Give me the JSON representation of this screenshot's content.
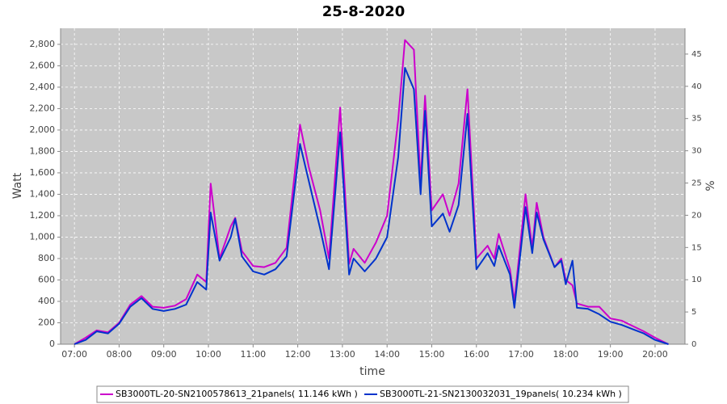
{
  "chart_data": {
    "type": "line",
    "title": "25-8-2020",
    "x_label": "time",
    "y_label": "Watt",
    "y2_label": "%",
    "x": [
      7.0,
      7.25,
      7.5,
      7.75,
      8.0,
      8.25,
      8.5,
      8.75,
      9.0,
      9.25,
      9.5,
      9.75,
      9.95,
      10.05,
      10.25,
      10.5,
      10.6,
      10.75,
      11.0,
      11.25,
      11.5,
      11.75,
      12.05,
      12.25,
      12.5,
      12.7,
      12.95,
      13.15,
      13.25,
      13.5,
      13.75,
      14.0,
      14.25,
      14.4,
      14.6,
      14.75,
      14.85,
      15.0,
      15.25,
      15.4,
      15.6,
      15.8,
      16.0,
      16.25,
      16.4,
      16.5,
      16.75,
      16.85,
      17.1,
      17.25,
      17.35,
      17.5,
      17.75,
      17.9,
      18.0,
      18.15,
      18.25,
      18.5,
      18.75,
      19.0,
      19.25,
      19.5,
      19.75,
      20.0,
      20.3
    ],
    "series": [
      {
        "name": "SB3000TL-20-SN2100578613_21panels( 11.146 kWh )",
        "color": "#cc00cc",
        "values": [
          0,
          60,
          130,
          110,
          200,
          370,
          450,
          350,
          340,
          360,
          420,
          650,
          580,
          1500,
          800,
          1100,
          1180,
          870,
          730,
          720,
          760,
          900,
          2050,
          1650,
          1250,
          800,
          2210,
          750,
          890,
          760,
          950,
          1200,
          2100,
          2840,
          2750,
          1500,
          2320,
          1250,
          1400,
          1200,
          1500,
          2380,
          800,
          920,
          800,
          1030,
          700,
          400,
          1400,
          900,
          1320,
          1000,
          720,
          800,
          600,
          550,
          380,
          350,
          350,
          240,
          220,
          170,
          120,
          60,
          0
        ]
      },
      {
        "name": "SB3000TL-21-SN2130032031_19panels( 10.234 kWh )",
        "color": "#0033cc",
        "values": [
          0,
          40,
          120,
          100,
          190,
          350,
          430,
          330,
          310,
          330,
          370,
          580,
          510,
          1230,
          780,
          1000,
          1170,
          820,
          680,
          650,
          700,
          820,
          1870,
          1520,
          1080,
          700,
          1980,
          650,
          800,
          680,
          800,
          1000,
          1750,
          2580,
          2380,
          1400,
          2180,
          1100,
          1220,
          1050,
          1300,
          2150,
          700,
          850,
          730,
          920,
          650,
          340,
          1280,
          850,
          1230,
          980,
          720,
          780,
          560,
          780,
          340,
          330,
          280,
          210,
          180,
          140,
          100,
          40,
          0
        ]
      }
    ],
    "xlim": [
      6.69,
      20.67
    ],
    "xticks": [
      {
        "value": 7,
        "label": "07:00"
      },
      {
        "value": 8,
        "label": "08:00"
      },
      {
        "value": 9,
        "label": "09:00"
      },
      {
        "value": 10,
        "label": "10:00"
      },
      {
        "value": 11,
        "label": "11:00"
      },
      {
        "value": 12,
        "label": "12:00"
      },
      {
        "value": 13,
        "label": "13:00"
      },
      {
        "value": 14,
        "label": "14:00"
      },
      {
        "value": 15,
        "label": "15:00"
      },
      {
        "value": 16,
        "label": "16:00"
      },
      {
        "value": 17,
        "label": "17:00"
      },
      {
        "value": 18,
        "label": "18:00"
      },
      {
        "value": 19,
        "label": "19:00"
      },
      {
        "value": 20,
        "label": "20:00"
      }
    ],
    "ylim": [
      0,
      2950
    ],
    "yticks": [
      0,
      200,
      400,
      600,
      800,
      {
        "value": 1000,
        "label": "1,000"
      },
      {
        "value": 1200,
        "label": "1,200"
      },
      {
        "value": 1400,
        "label": "1,400"
      },
      {
        "value": 1600,
        "label": "1,600"
      },
      {
        "value": 1800,
        "label": "1,800"
      },
      {
        "value": 2000,
        "label": "2,000"
      },
      {
        "value": 2200,
        "label": "2,200"
      },
      {
        "value": 2400,
        "label": "2,400"
      },
      {
        "value": 2600,
        "label": "2,600"
      },
      {
        "value": 2800,
        "label": "2,800"
      }
    ],
    "y2lim": [
      0,
      49
    ],
    "y2ticks": [
      0,
      5,
      10,
      15,
      20,
      25,
      30,
      35,
      40,
      45
    ],
    "grid": true,
    "legend": "bottom"
  }
}
